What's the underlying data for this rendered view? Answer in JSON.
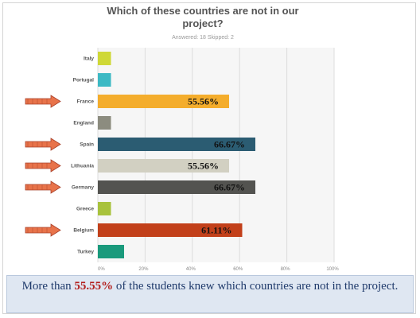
{
  "chart_data": {
    "type": "bar",
    "orientation": "horizontal",
    "title": "Which of these countries are not in our project?",
    "subtitle": "Answered: 18   Skipped: 2",
    "categories": [
      "Italy",
      "Portugal",
      "France",
      "England",
      "Spain",
      "Lithuania",
      "Germany",
      "Greece",
      "Belgium",
      "Turkey"
    ],
    "values": [
      5.56,
      5.56,
      55.56,
      5.56,
      66.67,
      55.56,
      66.67,
      5.56,
      61.11,
      11.11
    ],
    "data_labels": [
      "",
      "",
      "55.56%",
      "",
      "66.67%",
      "55.56%",
      "66.67%",
      "",
      "61.11%",
      ""
    ],
    "bar_colors": [
      "#cfd836",
      "#3cb9c4",
      "#f4ad2c",
      "#8c8c7f",
      "#2b5c72",
      "#d2d0c2",
      "#535350",
      "#a8c23c",
      "#c2401a",
      "#1a9a7c"
    ],
    "arrow_rows": [
      "France",
      "Spain",
      "Lithuania",
      "Germany",
      "Belgium"
    ],
    "xlim": [
      0,
      100
    ],
    "xticks": [
      "0%",
      "20%",
      "40%",
      "60%",
      "80%",
      "100%"
    ],
    "grid": true
  },
  "caption": {
    "prefix": "More than ",
    "highlight": "55.55%",
    "suffix": " of the students knew which countries  are not in the project."
  }
}
